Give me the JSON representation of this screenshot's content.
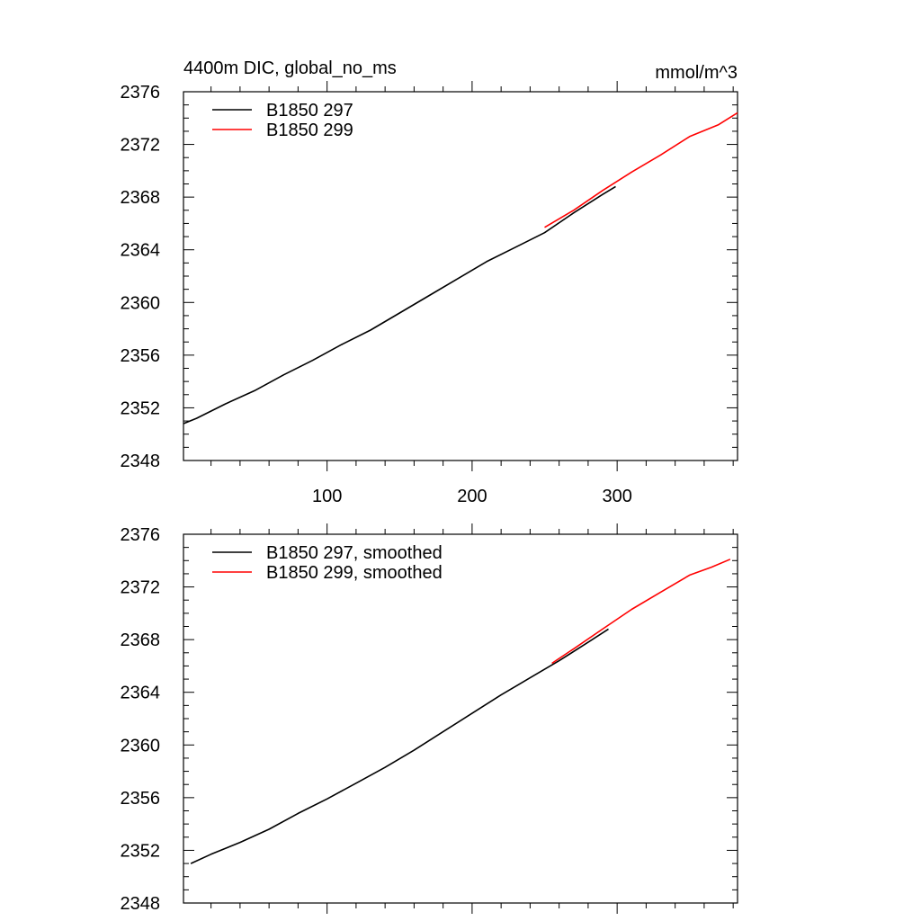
{
  "title_left": "4400m DIC, global_no_ms",
  "title_right": "mmol/m^3",
  "colors": {
    "run_297": "#000000",
    "run_299": "#ff0000"
  },
  "chart_data": [
    {
      "type": "line",
      "xlim": [
        1,
        383
      ],
      "ylim": [
        2348,
        2376
      ],
      "xticks": [
        100,
        200,
        300
      ],
      "yticks": [
        2348,
        2352,
        2356,
        2360,
        2364,
        2368,
        2372,
        2376
      ],
      "show_x_tick_labels": true,
      "legend_position": "top-left",
      "series": [
        {
          "name": "B1850 297",
          "color": "#000000",
          "x": [
            1,
            10,
            30,
            50,
            70,
            90,
            110,
            130,
            150,
            170,
            190,
            210,
            230,
            250,
            270,
            290,
            299
          ],
          "y": [
            2350.8,
            2351.2,
            2352.3,
            2353.3,
            2354.5,
            2355.6,
            2356.8,
            2357.9,
            2359.2,
            2360.5,
            2361.8,
            2363.1,
            2364.2,
            2365.3,
            2366.8,
            2368.2,
            2368.8
          ]
        },
        {
          "name": "B1850 299",
          "color": "#ff0000",
          "x": [
            250,
            270,
            290,
            310,
            330,
            350,
            370,
            383
          ],
          "y": [
            2365.7,
            2367.0,
            2368.5,
            2369.9,
            2371.2,
            2372.6,
            2373.5,
            2374.4
          ]
        }
      ]
    },
    {
      "type": "line",
      "xlim": [
        1,
        383
      ],
      "ylim": [
        2348,
        2376
      ],
      "xticks": [
        100,
        200,
        300
      ],
      "yticks": [
        2348,
        2352,
        2356,
        2360,
        2364,
        2368,
        2372,
        2376
      ],
      "show_x_tick_labels": false,
      "legend_position": "top-left",
      "series": [
        {
          "name": "B1850 297, smoothed",
          "color": "#000000",
          "x": [
            6,
            20,
            40,
            60,
            80,
            100,
            120,
            140,
            160,
            180,
            200,
            220,
            240,
            260,
            280,
            294
          ],
          "y": [
            2351.0,
            2351.7,
            2352.6,
            2353.6,
            2354.8,
            2355.9,
            2357.1,
            2358.3,
            2359.6,
            2361.0,
            2362.4,
            2363.8,
            2365.1,
            2366.4,
            2367.8,
            2368.8
          ]
        },
        {
          "name": "B1850 299, smoothed",
          "color": "#ff0000",
          "x": [
            255,
            270,
            290,
            310,
            330,
            350,
            365,
            378
          ],
          "y": [
            2366.2,
            2367.3,
            2368.8,
            2370.3,
            2371.6,
            2372.9,
            2373.5,
            2374.1
          ]
        }
      ]
    }
  ]
}
